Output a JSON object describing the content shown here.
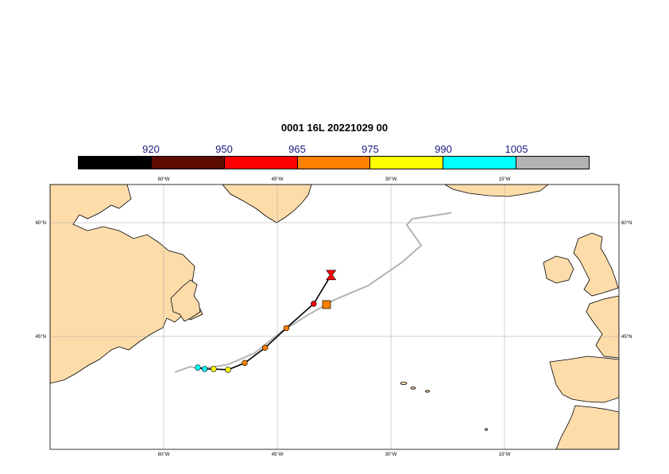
{
  "title": "0001 16L 20221029 00",
  "colorbar": {
    "labels": [
      "920",
      "950",
      "965",
      "975",
      "990",
      "1005"
    ],
    "colors": [
      "#000000",
      "#5c0d00",
      "#ff0000",
      "#ff8000",
      "#ffff00",
      "#00ffff",
      "#b3b3b3"
    ]
  },
  "map": {
    "lon_labels": [
      "60°W",
      "45°W",
      "30°W",
      "15°W"
    ],
    "lat_labels": [
      "60°N",
      "45°N"
    ],
    "land_color": "#fddcaa",
    "ocean_color": "#ffffff",
    "grid_color": "#a6a6a6"
  },
  "track": {
    "forecast_points": [
      {
        "lon": -55.5,
        "lat": 40.9,
        "color": "#00ffff"
      },
      {
        "lon": -54.6,
        "lat": 40.7,
        "color": "#00ffff"
      },
      {
        "lon": -53.4,
        "lat": 40.7,
        "color": "#ffff00"
      },
      {
        "lon": -51.5,
        "lat": 40.6,
        "color": "#ffff00"
      },
      {
        "lon": -49.3,
        "lat": 41.5,
        "color": "#ff8000"
      },
      {
        "lon": -46.6,
        "lat": 43.5,
        "color": "#ff8000"
      },
      {
        "lon": -43.8,
        "lat": 46.1,
        "color": "#ff8000"
      },
      {
        "lon": -40.2,
        "lat": 49.3,
        "color": "#ff0000"
      }
    ],
    "end_marker": {
      "lon": -37.9,
      "lat": 53.1,
      "color": "#ff0000",
      "shape": "hourglass"
    },
    "analysis_marker": {
      "lon": -38.5,
      "lat": 49.2,
      "color": "#ff8000",
      "shape": "square"
    },
    "observed_line": [
      [
        -58.5,
        40.3
      ],
      [
        -57.6,
        40.6
      ],
      [
        -56.5,
        41.0
      ],
      [
        -55.5,
        40.8
      ],
      [
        -54.0,
        40.9
      ],
      [
        -51.5,
        41.3
      ],
      [
        -48.0,
        42.8
      ],
      [
        -44.5,
        45.6
      ],
      [
        -41.0,
        47.8
      ],
      [
        -37.5,
        49.8
      ],
      [
        -33.0,
        51.7
      ],
      [
        -28.5,
        54.8
      ],
      [
        -26.0,
        57.0
      ],
      [
        -27.9,
        59.7
      ],
      [
        -27.2,
        60.5
      ],
      [
        -24.0,
        61.0
      ],
      [
        -22.0,
        61.3
      ]
    ]
  }
}
